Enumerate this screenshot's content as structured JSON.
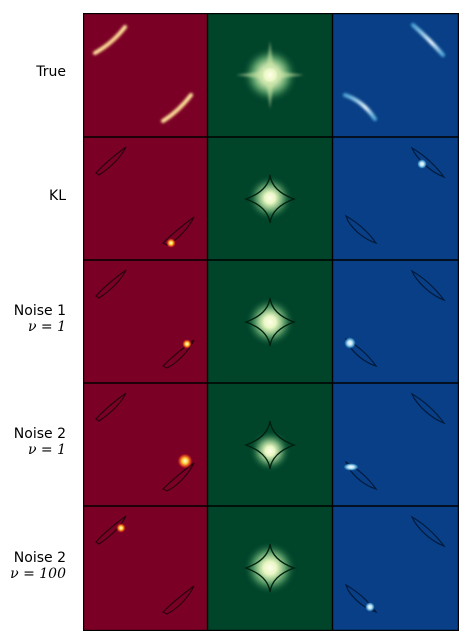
{
  "rows": [
    {
      "line1": "True",
      "line2": ""
    },
    {
      "line1": "KL",
      "line2": ""
    },
    {
      "line1": "Noise 1",
      "line2": "ν = 1"
    },
    {
      "line1": "Noise 2",
      "line2": "ν = 1"
    },
    {
      "line1": "Noise 2",
      "line2": "ν = 100"
    }
  ],
  "columns": [
    {
      "background": "#7b0025",
      "colormap": "hot"
    },
    {
      "background": "#00442a",
      "colormap": "green"
    },
    {
      "background": "#083f86",
      "colormap": "blue"
    }
  ]
}
